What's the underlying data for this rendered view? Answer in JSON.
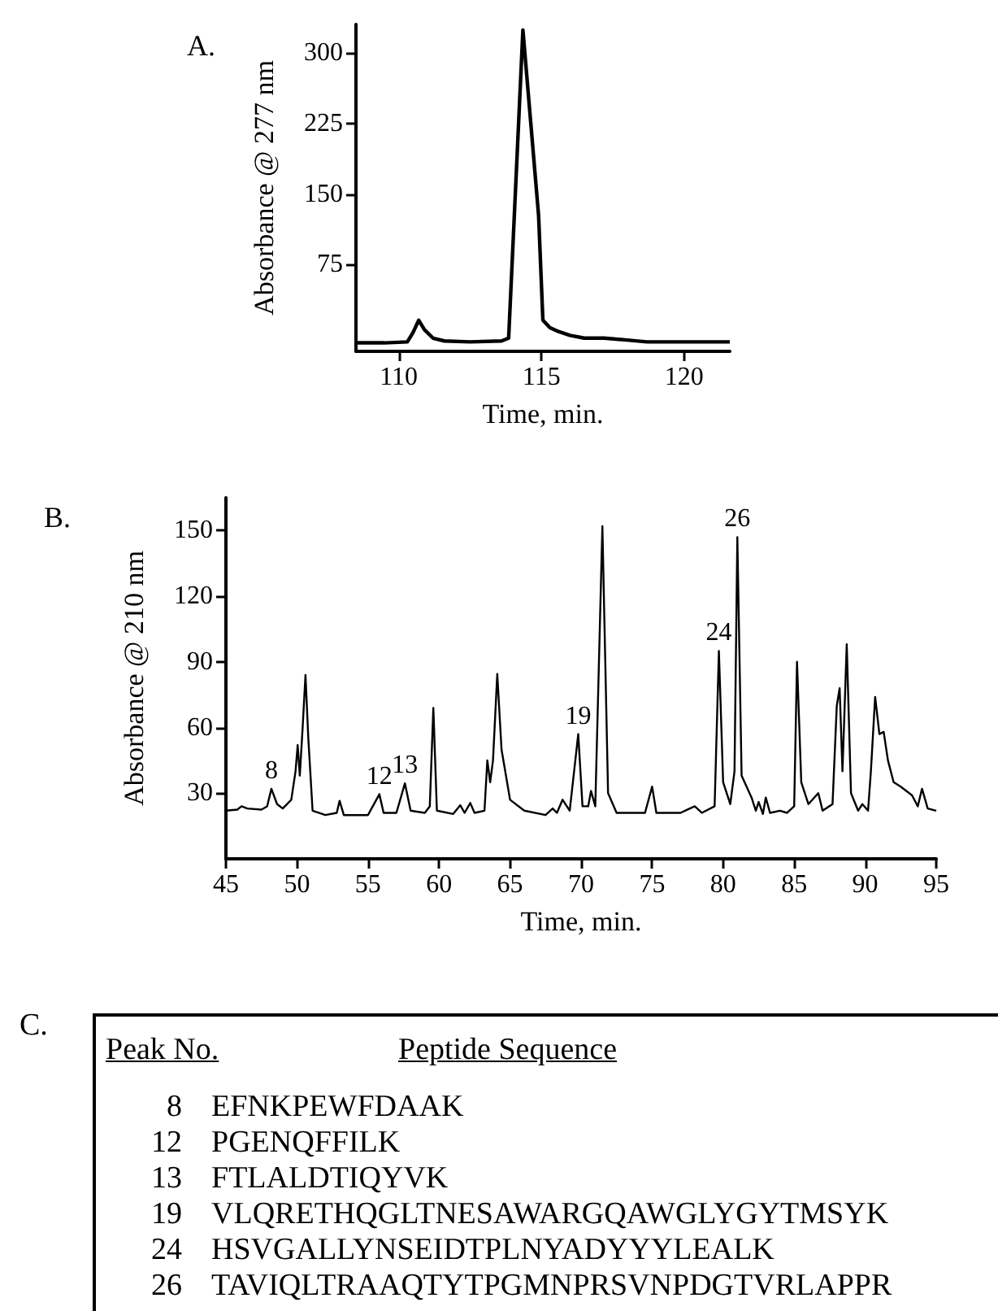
{
  "chart_data": [
    {
      "type": "line",
      "title": "A.",
      "xlabel": "Time, min.",
      "ylabel": "Absorbance @ 277 nm",
      "xlim": [
        108.5,
        121.6
      ],
      "xticks": [
        110,
        115,
        120
      ],
      "ylim": [
        -17,
        330
      ],
      "yticks": [
        75,
        150,
        225,
        300
      ],
      "x": [
        108.5,
        109.5,
        110.3,
        110.5,
        110.7,
        110.9,
        111.2,
        111.6,
        112.5,
        113.6,
        113.85,
        114.35,
        114.9,
        115.05,
        115.3,
        115.6,
        116.0,
        116.5,
        117.2,
        118.0,
        118.7,
        120.0,
        121.6
      ],
      "series": [
        {
          "color": "#000000",
          "values": [
            -8,
            -8,
            -7,
            3,
            16,
            6,
            -3,
            -6,
            -7,
            -6,
            -3,
            324,
            127,
            16,
            8,
            4,
            0,
            -3,
            -3,
            -5,
            -7,
            -7,
            -7
          ]
        }
      ]
    },
    {
      "type": "line",
      "title": "B.",
      "xlabel": "Time, min.",
      "ylabel": "Absorbance @ 210 nm",
      "xlim": [
        45,
        95
      ],
      "xticks": [
        45,
        50,
        55,
        60,
        65,
        70,
        75,
        80,
        85,
        90,
        95
      ],
      "ylim": [
        0,
        165
      ],
      "yticks": [
        30,
        60,
        90,
        120,
        150
      ],
      "x": [
        45.0,
        45.8,
        46.1,
        46.5,
        47.5,
        47.9,
        48.2,
        48.6,
        49.0,
        49.6,
        49.9,
        50.05,
        50.2,
        50.4,
        50.6,
        50.8,
        51.1,
        52.0,
        52.8,
        53.0,
        53.3,
        55.0,
        55.8,
        56.1,
        57.0,
        57.6,
        58.0,
        59.0,
        59.35,
        59.6,
        59.85,
        61.0,
        61.5,
        61.8,
        62.2,
        62.5,
        63.2,
        63.4,
        63.6,
        63.8,
        64.1,
        64.4,
        65.0,
        66.0,
        67.5,
        68.0,
        68.3,
        68.7,
        69.2,
        69.8,
        70.1,
        70.5,
        70.7,
        71.0,
        71.5,
        71.9,
        72.5,
        74.5,
        75.0,
        75.3,
        77.0,
        77.5,
        78.0,
        78.5,
        79.4,
        79.7,
        80.0,
        80.5,
        80.8,
        81.0,
        81.3,
        82.0,
        82.3,
        82.5,
        82.8,
        83.0,
        83.3,
        84.0,
        84.5,
        85.0,
        85.2,
        85.5,
        86.0,
        86.7,
        87.0,
        87.7,
        88.0,
        88.2,
        88.4,
        88.7,
        89.0,
        89.5,
        89.8,
        90.2,
        90.4,
        90.7,
        91.0,
        91.3,
        91.6,
        92.0,
        92.5,
        93.3,
        93.7,
        94.0,
        94.4,
        95.0
      ],
      "series": [
        {
          "color": "#000000",
          "values": [
            22,
            22.5,
            24,
            23,
            22.5,
            24,
            32,
            25,
            23,
            27,
            40,
            52,
            38,
            60,
            84,
            55,
            22,
            20,
            21,
            26.5,
            20,
            20,
            29.5,
            21,
            21,
            34.5,
            22,
            21,
            24,
            69,
            22,
            20.5,
            24.5,
            21,
            25.5,
            21,
            22,
            45,
            35,
            45,
            84.5,
            50,
            27,
            22,
            20,
            23,
            21,
            27,
            22,
            57,
            24,
            24,
            31,
            24,
            152,
            30,
            21,
            21,
            33,
            21,
            21,
            22.5,
            24,
            21,
            24,
            95,
            35,
            25,
            40,
            147,
            38,
            28,
            22,
            26,
            20.5,
            28,
            21,
            22,
            21,
            24,
            90,
            35,
            25,
            30,
            22,
            25,
            70,
            78,
            40,
            98,
            30,
            22,
            25,
            22,
            40,
            74,
            57,
            58,
            45,
            35,
            33,
            29,
            24,
            32,
            23,
            22
          ]
        }
      ],
      "annotations": [
        {
          "text": "8",
          "x": 48.2,
          "y": 32
        },
        {
          "text": "12",
          "x": 55.8,
          "y": 29.5
        },
        {
          "text": "13",
          "x": 57.6,
          "y": 34.5
        },
        {
          "text": "19",
          "x": 69.8,
          "y": 57
        },
        {
          "text": "24",
          "x": 79.7,
          "y": 95
        },
        {
          "text": "26",
          "x": 81.0,
          "y": 147
        }
      ]
    },
    {
      "type": "other",
      "title": "C.",
      "annotations": [
        "Peak No.",
        "Peptide Sequence",
        "8",
        "EFNKPEWFDAAK",
        "12",
        "PGENQFFILK",
        "13",
        "FTLALDTIQYVK",
        "19",
        "VLQRETHQGLTNESAWARGQAWGLYGYTMSYK",
        "24",
        "HSVGALLYNSEIDTPLNYADYYYLEALK",
        "26",
        "TAVIQLTRAAQTYTPGMNPRSVNPDGTVRLAPPR"
      ]
    }
  ]
}
